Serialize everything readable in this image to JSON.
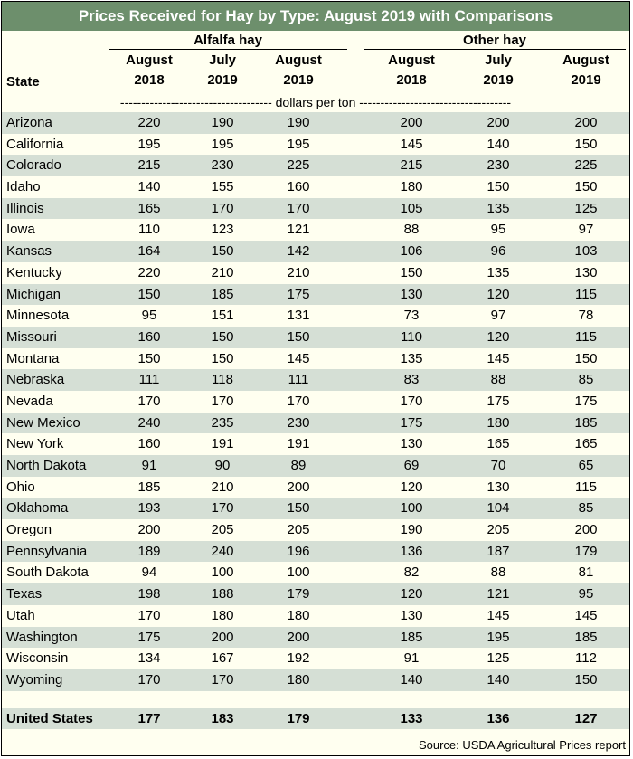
{
  "title": "Prices Received for Hay by Type: August 2019 with Comparisons",
  "groups": [
    "Alfalfa hay",
    "Other hay"
  ],
  "column_headers": [
    {
      "line1": "August",
      "line2": "2018"
    },
    {
      "line1": "July",
      "line2": "2019"
    },
    {
      "line1": "August",
      "line2": "2019"
    },
    {
      "line1": "August",
      "line2": "2018"
    },
    {
      "line1": "July",
      "line2": "2019"
    },
    {
      "line1": "August",
      "line2": "2019"
    }
  ],
  "state_header": "State",
  "units": "------------------------------------ dollars per ton ------------------------------------",
  "rows": [
    {
      "state": "Arizona",
      "values": [
        "220",
        "190",
        "190",
        "200",
        "200",
        "200"
      ]
    },
    {
      "state": "California",
      "values": [
        "195",
        "195",
        "195",
        "145",
        "140",
        "150"
      ]
    },
    {
      "state": "Colorado",
      "values": [
        "215",
        "230",
        "225",
        "215",
        "230",
        "225"
      ]
    },
    {
      "state": "Idaho",
      "values": [
        "140",
        "155",
        "160",
        "180",
        "150",
        "150"
      ]
    },
    {
      "state": "Illinois",
      "values": [
        "165",
        "170",
        "170",
        "105",
        "135",
        "125"
      ]
    },
    {
      "state": "Iowa",
      "values": [
        "110",
        "123",
        "121",
        "88",
        "95",
        "97"
      ]
    },
    {
      "state": "Kansas",
      "values": [
        "164",
        "150",
        "142",
        "106",
        "96",
        "103"
      ]
    },
    {
      "state": "Kentucky",
      "values": [
        "220",
        "210",
        "210",
        "150",
        "135",
        "130"
      ]
    },
    {
      "state": "Michigan",
      "values": [
        "150",
        "185",
        "175",
        "130",
        "120",
        "115"
      ]
    },
    {
      "state": "Minnesota",
      "values": [
        "95",
        "151",
        "131",
        "73",
        "97",
        "78"
      ]
    },
    {
      "state": "Missouri",
      "values": [
        "160",
        "150",
        "150",
        "110",
        "120",
        "115"
      ]
    },
    {
      "state": "Montana",
      "values": [
        "150",
        "150",
        "145",
        "135",
        "145",
        "150"
      ]
    },
    {
      "state": "Nebraska",
      "values": [
        "111",
        "118",
        "111",
        "83",
        "88",
        "85"
      ]
    },
    {
      "state": "Nevada",
      "values": [
        "170",
        "170",
        "170",
        "170",
        "175",
        "175"
      ]
    },
    {
      "state": "New Mexico",
      "values": [
        "240",
        "235",
        "230",
        "175",
        "180",
        "185"
      ]
    },
    {
      "state": "New York",
      "values": [
        "160",
        "191",
        "191",
        "130",
        "165",
        "165"
      ]
    },
    {
      "state": "North Dakota",
      "values": [
        "91",
        "90",
        "89",
        "69",
        "70",
        "65"
      ]
    },
    {
      "state": "Ohio",
      "values": [
        "185",
        "210",
        "200",
        "120",
        "130",
        "115"
      ]
    },
    {
      "state": "Oklahoma",
      "values": [
        "193",
        "170",
        "150",
        "100",
        "104",
        "85"
      ]
    },
    {
      "state": "Oregon",
      "values": [
        "200",
        "205",
        "205",
        "190",
        "205",
        "200"
      ]
    },
    {
      "state": "Pennsylvania",
      "values": [
        "189",
        "240",
        "196",
        "136",
        "187",
        "179"
      ]
    },
    {
      "state": "South Dakota",
      "values": [
        "94",
        "100",
        "100",
        "82",
        "88",
        "81"
      ]
    },
    {
      "state": "Texas",
      "values": [
        "198",
        "188",
        "179",
        "120",
        "121",
        "95"
      ]
    },
    {
      "state": "Utah",
      "values": [
        "170",
        "180",
        "180",
        "130",
        "145",
        "145"
      ]
    },
    {
      "state": "Washington",
      "values": [
        "175",
        "200",
        "200",
        "185",
        "195",
        "185"
      ]
    },
    {
      "state": "Wisconsin",
      "values": [
        "134",
        "167",
        "192",
        "91",
        "125",
        "112"
      ]
    },
    {
      "state": "Wyoming",
      "values": [
        "170",
        "170",
        "180",
        "140",
        "140",
        "150"
      ]
    }
  ],
  "total": {
    "state": "United States",
    "values": [
      "177",
      "183",
      "179",
      "133",
      "136",
      "127"
    ]
  },
  "source": "Source: USDA Agricultural Prices report",
  "colors": {
    "title_bg": "#6d8f6c",
    "band": "#d5dfd5",
    "light": "#fffff0"
  }
}
